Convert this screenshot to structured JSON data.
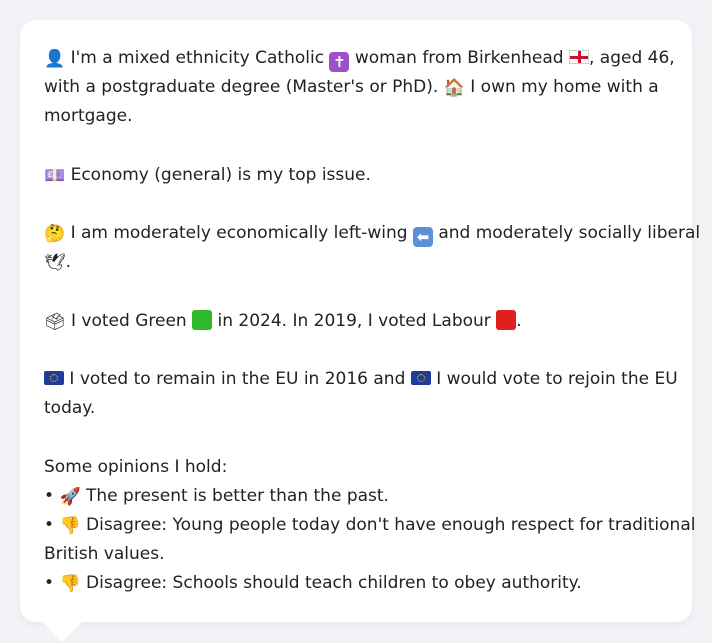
{
  "profile": {
    "identity_text_1": "I'm a mixed ethnicity Catholic",
    "identity_text_2": "woman from Birkenhead",
    "identity_text_3": ", aged 46,",
    "identity_text_4": "with a postgraduate degree (Master's or PhD).",
    "identity_text_5": "I own my home with a",
    "identity_text_6": "mortgage.",
    "top_issue": "Economy (general) is my top issue.",
    "ideology_1": "I am moderately economically left-wing",
    "ideology_2": "and moderately socially liberal",
    "ideology_3": ".",
    "vote_1": "I voted Green",
    "vote_2": "in 2024. In 2019, I voted Labour",
    "vote_3": ".",
    "eu_1": "I voted to remain in the EU in 2016 and",
    "eu_2": "I would vote to rejoin the EU",
    "eu_3": "today.",
    "opinions_heading": "Some opinions I hold:",
    "opinions": [
      {
        "bullet": "•",
        "text": "The present is better than the past."
      },
      {
        "bullet": "•",
        "text": "Disagree: Young people today don't have enough respect for traditional"
      },
      {
        "bullet": "",
        "text": "British values."
      },
      {
        "bullet": "•",
        "text": "Disagree: Schools should teach children to obey authority."
      }
    ]
  },
  "icons": {
    "person": "person-icon",
    "cross": "latin-cross-icon",
    "england_flag": "england-flag-icon",
    "house": "house-icon",
    "money": "money-icon",
    "thinking": "thinking-face-icon",
    "left_arrow": "left-arrow-icon",
    "dove": "dove-icon",
    "ballot": "ballot-box-icon",
    "eu_flag": "eu-flag-icon",
    "rocket": "rocket-icon",
    "thumbs_down": "thumbs-down-icon"
  },
  "colors": {
    "green_party": "#2eb82e",
    "labour": "#e0201b",
    "cross_tile": "#9b51c9",
    "arrow_tile": "#5b8fd6",
    "text": "#222222",
    "bubble": "#ffffff",
    "background": "#f1f3f6"
  }
}
